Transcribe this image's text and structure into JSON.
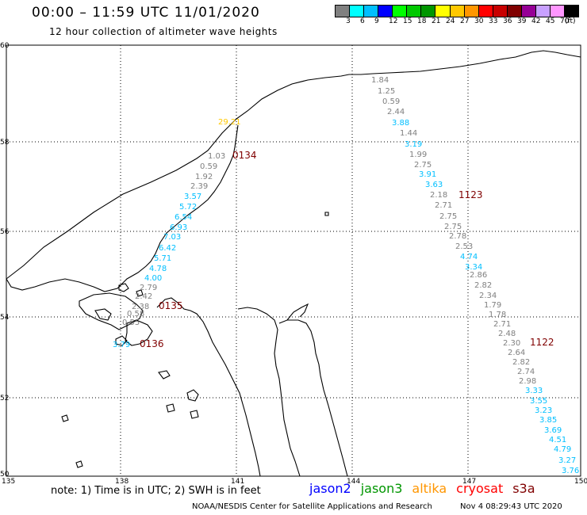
{
  "header": {
    "title": "00:00 – 11:59 UTC 11/01/2020",
    "subtitle": "12 hour collection of altimeter wave heights"
  },
  "colorbar": {
    "colors": [
      "#808080",
      "#00ffff",
      "#00bfff",
      "#0000ff",
      "#00ff00",
      "#00c800",
      "#009600",
      "#ffff00",
      "#ffc800",
      "#ff9600",
      "#ff0000",
      "#c80000",
      "#800000",
      "#960096",
      "#c8a0ff",
      "#ff96ff",
      "#000000"
    ],
    "tick_labels": [
      "3",
      "6",
      "9",
      "12",
      "15",
      "18",
      "21",
      "24",
      "27",
      "30",
      "33",
      "36",
      "39",
      "42",
      "45",
      "70",
      "(ft)"
    ]
  },
  "axes": {
    "lon_ticks": [
      "135",
      "138",
      "141",
      "144",
      "147",
      "150"
    ],
    "lat_ticks": [
      "60",
      "58",
      "56",
      "54",
      "52",
      "50"
    ]
  },
  "passes": [
    {
      "id": "0134",
      "label": "0134"
    },
    {
      "id": "0135",
      "label": "0135"
    },
    {
      "id": "0136",
      "label": "0136"
    },
    {
      "id": "1123",
      "label": "1123"
    },
    {
      "id": "1122",
      "label": "1122"
    }
  ],
  "observations": [
    {
      "value": "29.21",
      "color": "#ffc800"
    },
    {
      "value": "1.03",
      "color": "#808080"
    },
    {
      "value": "0.59",
      "color": "#808080"
    },
    {
      "value": "1.92",
      "color": "#808080"
    },
    {
      "value": "2.39",
      "color": "#808080"
    },
    {
      "value": "3.57",
      "color": "#00bfff"
    },
    {
      "value": "5.72",
      "color": "#00bfff"
    },
    {
      "value": "6.54",
      "color": "#00bfff"
    },
    {
      "value": "6.93",
      "color": "#00bfff"
    },
    {
      "value": "7.03",
      "color": "#00bfff"
    },
    {
      "value": "6.42",
      "color": "#00bfff"
    },
    {
      "value": "5.71",
      "color": "#00bfff"
    },
    {
      "value": "4.78",
      "color": "#00bfff"
    },
    {
      "value": "4.00",
      "color": "#00bfff"
    },
    {
      "value": "2.79",
      "color": "#808080"
    },
    {
      "value": "2.42",
      "color": "#808080"
    },
    {
      "value": "2.38",
      "color": "#808080"
    },
    {
      "value": "0.58",
      "color": "#808080"
    },
    {
      "value": "0.55",
      "color": "#808080"
    },
    {
      "value": "3.79",
      "color": "#00bfff"
    },
    {
      "value": "1.84",
      "color": "#808080"
    },
    {
      "value": "1.25",
      "color": "#808080"
    },
    {
      "value": "0.59",
      "color": "#808080"
    },
    {
      "value": "2.44",
      "color": "#808080"
    },
    {
      "value": "3.88",
      "color": "#00bfff"
    },
    {
      "value": "1.44",
      "color": "#808080"
    },
    {
      "value": "3.19",
      "color": "#00bfff"
    },
    {
      "value": "1.99",
      "color": "#808080"
    },
    {
      "value": "2.75",
      "color": "#808080"
    },
    {
      "value": "3.91",
      "color": "#00bfff"
    },
    {
      "value": "3.63",
      "color": "#00bfff"
    },
    {
      "value": "2.18",
      "color": "#808080"
    },
    {
      "value": "2.71",
      "color": "#808080"
    },
    {
      "value": "2.75",
      "color": "#808080"
    },
    {
      "value": "2.75",
      "color": "#808080"
    },
    {
      "value": "2.78",
      "color": "#808080"
    },
    {
      "value": "2.53",
      "color": "#808080"
    },
    {
      "value": "4.74",
      "color": "#00bfff"
    },
    {
      "value": "3.34",
      "color": "#00bfff"
    },
    {
      "value": "2.86",
      "color": "#808080"
    },
    {
      "value": "2.82",
      "color": "#808080"
    },
    {
      "value": "2.34",
      "color": "#808080"
    },
    {
      "value": "1.79",
      "color": "#808080"
    },
    {
      "value": "1.78",
      "color": "#808080"
    },
    {
      "value": "2.71",
      "color": "#808080"
    },
    {
      "value": "2.48",
      "color": "#808080"
    },
    {
      "value": "2.30",
      "color": "#808080"
    },
    {
      "value": "2.64",
      "color": "#808080"
    },
    {
      "value": "2.82",
      "color": "#808080"
    },
    {
      "value": "2.74",
      "color": "#808080"
    },
    {
      "value": "2.98",
      "color": "#808080"
    },
    {
      "value": "3.33",
      "color": "#00bfff"
    },
    {
      "value": "3.55",
      "color": "#00bfff"
    },
    {
      "value": "3.23",
      "color": "#00bfff"
    },
    {
      "value": "3.85",
      "color": "#00bfff"
    },
    {
      "value": "3.69",
      "color": "#00bfff"
    },
    {
      "value": "4.51",
      "color": "#00bfff"
    },
    {
      "value": "4.79",
      "color": "#00bfff"
    },
    {
      "value": "3.27",
      "color": "#00bfff"
    },
    {
      "value": "3.76",
      "color": "#00bfff"
    }
  ],
  "footer": {
    "note": "note:  1) Time is in UTC;  2) SWH is in feet",
    "satellites": [
      {
        "name": "jason2",
        "color": "#0000ff"
      },
      {
        "name": "jason3",
        "color": "#009600"
      },
      {
        "name": "altika",
        "color": "#ff9600"
      },
      {
        "name": "cryosat",
        "color": "#ff0000"
      },
      {
        "name": "s3a",
        "color": "#800000"
      }
    ],
    "credit": "NOAA/NESDIS Center for Satellite Applications and Research",
    "timestamp": "Nov  4 08:29:43 UTC 2020"
  }
}
